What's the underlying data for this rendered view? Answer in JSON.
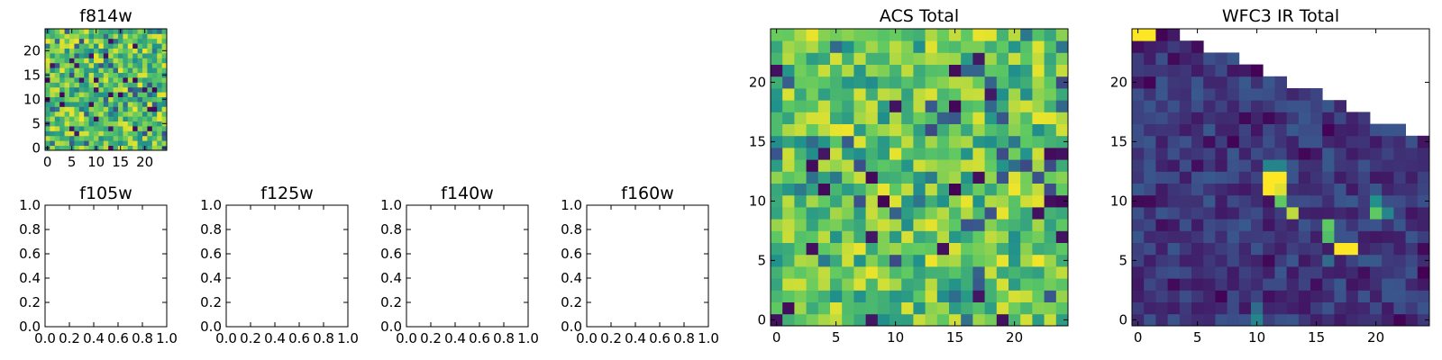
{
  "figure": {
    "background": "#ffffff"
  },
  "colormap": [
    "#440154",
    "#3b528b",
    "#21918c",
    "#5ec962",
    "#fde725"
  ],
  "chart_data": [
    {
      "id": "f814w",
      "type": "heatmap",
      "title": "f814w",
      "xticks": [
        0,
        5,
        10,
        15,
        20
      ],
      "yticks": [
        0,
        5,
        10,
        15,
        20
      ],
      "xlim": [
        -0.5,
        24.5
      ],
      "ylim": [
        -0.5,
        24.5
      ],
      "grid_size": [
        25,
        25
      ],
      "value_range": [
        0,
        1
      ],
      "seed": 814,
      "distribution": "mostly green-yellow values with scattered dark outliers"
    },
    {
      "id": "f105w",
      "type": "heatmap",
      "title": "f105w",
      "empty": true,
      "xticks": [
        "0.0",
        "0.2",
        "0.4",
        "0.6",
        "0.8",
        "1.0"
      ],
      "yticks": [
        "0.0",
        "0.2",
        "0.4",
        "0.6",
        "0.8",
        "1.0"
      ],
      "xlim": [
        0,
        1
      ],
      "ylim": [
        0,
        1
      ]
    },
    {
      "id": "f125w",
      "type": "heatmap",
      "title": "f125w",
      "empty": true,
      "xticks": [
        "0.0",
        "0.2",
        "0.4",
        "0.6",
        "0.8",
        "1.0"
      ],
      "yticks": [
        "0.0",
        "0.2",
        "0.4",
        "0.6",
        "0.8",
        "1.0"
      ],
      "xlim": [
        0,
        1
      ],
      "ylim": [
        0,
        1
      ]
    },
    {
      "id": "f140w",
      "type": "heatmap",
      "title": "f140w",
      "empty": true,
      "xticks": [
        "0.0",
        "0.2",
        "0.4",
        "0.6",
        "0.8",
        "1.0"
      ],
      "yticks": [
        "0.0",
        "0.2",
        "0.4",
        "0.6",
        "0.8",
        "1.0"
      ],
      "xlim": [
        0,
        1
      ],
      "ylim": [
        0,
        1
      ]
    },
    {
      "id": "f160w",
      "type": "heatmap",
      "title": "f160w",
      "empty": true,
      "xticks": [
        "0.0",
        "0.2",
        "0.4",
        "0.6",
        "0.8",
        "1.0"
      ],
      "yticks": [
        "0.0",
        "0.2",
        "0.4",
        "0.6",
        "0.8",
        "1.0"
      ],
      "xlim": [
        0,
        1
      ],
      "ylim": [
        0,
        1
      ]
    },
    {
      "id": "acs",
      "type": "heatmap",
      "title": "ACS Total",
      "xticks": [
        0,
        5,
        10,
        15,
        20
      ],
      "yticks": [
        0,
        5,
        10,
        15,
        20
      ],
      "xlim": [
        -0.5,
        24.5
      ],
      "ylim": [
        -0.5,
        24.5
      ],
      "grid_size": [
        25,
        25
      ],
      "value_range": [
        0,
        1
      ],
      "seed": 2021,
      "distribution": "mostly green-yellow values with scattered dark outliers"
    },
    {
      "id": "wfc3",
      "type": "heatmap",
      "title": "WFC3 IR Total",
      "xticks": [
        0,
        5,
        10,
        15,
        20
      ],
      "yticks": [
        0,
        5,
        10,
        15,
        20
      ],
      "xlim": [
        -0.5,
        24.5
      ],
      "ylim": [
        -0.5,
        24.5
      ],
      "grid_size": [
        25,
        25
      ],
      "value_range": [
        0,
        1
      ],
      "seed": 33,
      "distribution": "mostly dark blue-purple values with a few bright cells; upper-right triangle empty",
      "top_row_start": 24,
      "top_row_end": 15,
      "bright_cells": [
        {
          "x": 0,
          "y": 24,
          "v": 1.0
        },
        {
          "x": 1,
          "y": 24,
          "v": 1.0
        },
        {
          "x": 11,
          "y": 12,
          "v": 1.0
        },
        {
          "x": 12,
          "y": 12,
          "v": 1.0
        },
        {
          "x": 11,
          "y": 11,
          "v": 1.0
        },
        {
          "x": 12,
          "y": 11,
          "v": 0.95
        },
        {
          "x": 12,
          "y": 13,
          "v": 0.45
        },
        {
          "x": 11,
          "y": 13,
          "v": 0.45
        },
        {
          "x": 12,
          "y": 10,
          "v": 0.75
        },
        {
          "x": 13,
          "y": 9,
          "v": 0.9
        },
        {
          "x": 16,
          "y": 8,
          "v": 0.75
        },
        {
          "x": 16,
          "y": 7,
          "v": 0.7
        },
        {
          "x": 17,
          "y": 6,
          "v": 1.0
        },
        {
          "x": 18,
          "y": 6,
          "v": 1.0
        },
        {
          "x": 20,
          "y": 9,
          "v": 0.75
        },
        {
          "x": 20,
          "y": 10,
          "v": 0.5
        },
        {
          "x": 21,
          "y": 9,
          "v": 0.45
        },
        {
          "x": 10,
          "y": 0,
          "v": 0.45
        },
        {
          "x": 10,
          "y": 1,
          "v": 0.35
        },
        {
          "x": 16,
          "y": 5,
          "v": 0.35
        }
      ]
    }
  ]
}
